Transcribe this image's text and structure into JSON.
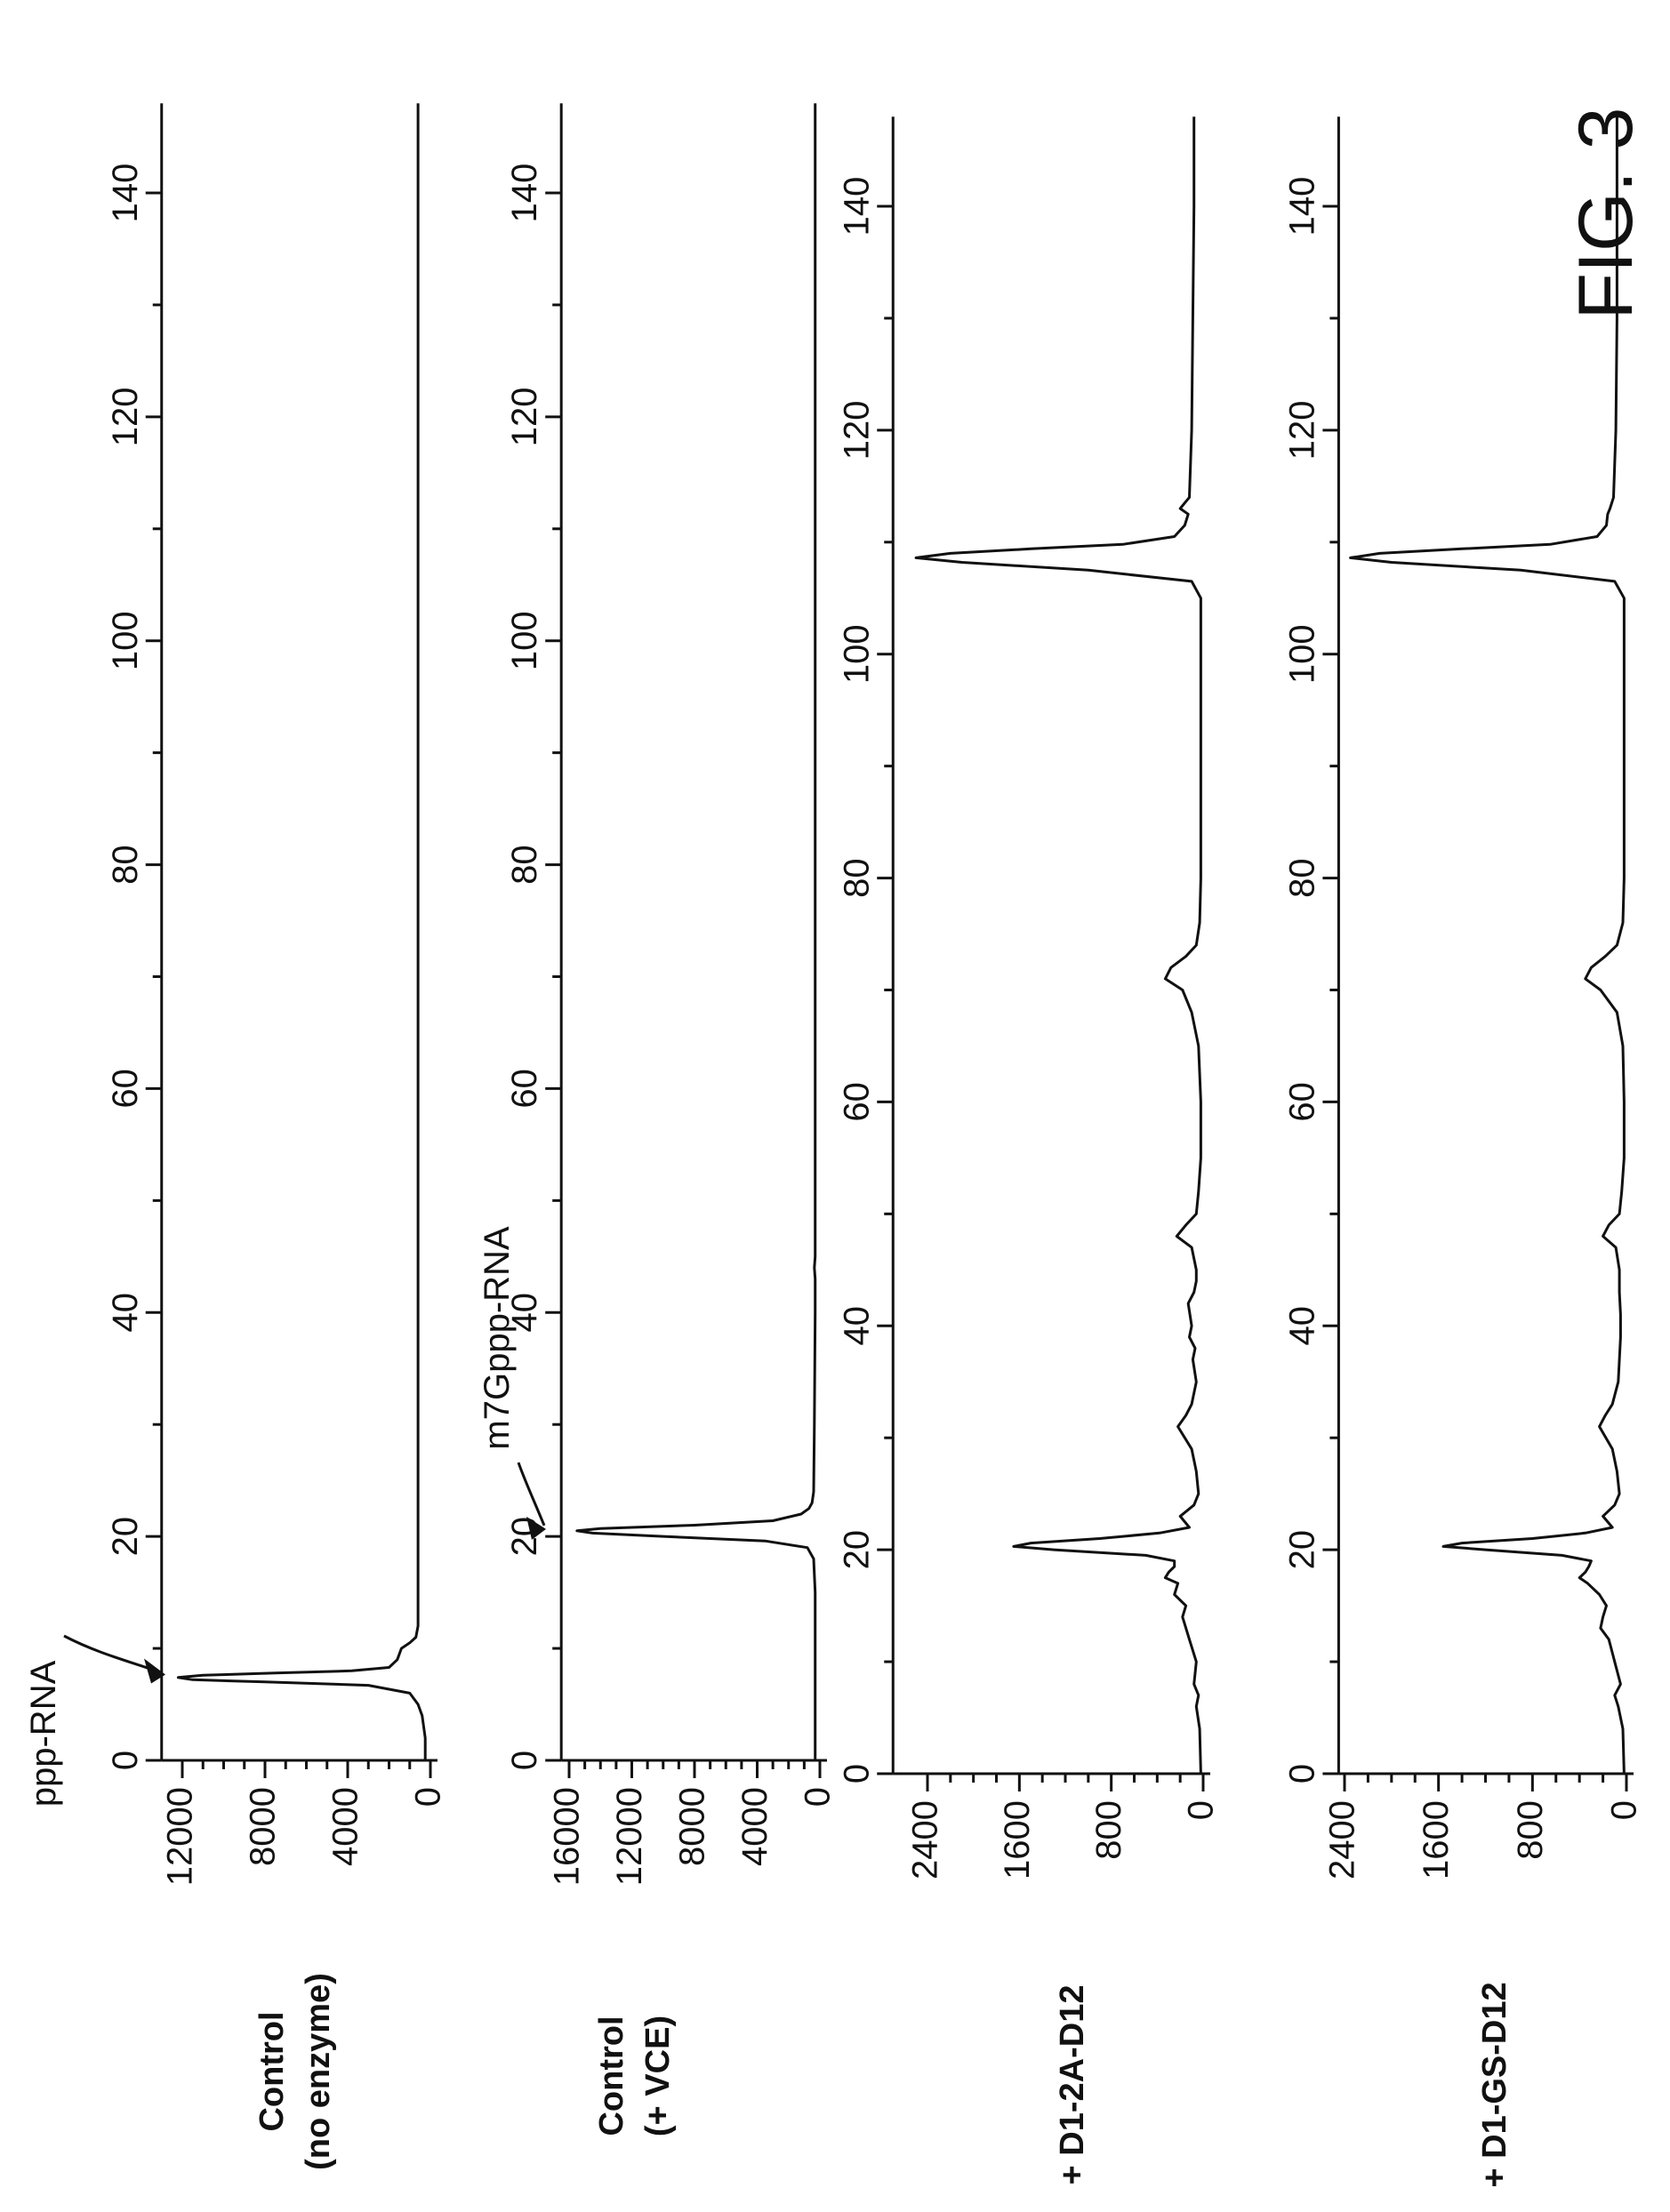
{
  "figure": {
    "label": "FIG. 3"
  },
  "chart_data": [
    {
      "type": "line",
      "panel_label": [
        "Control",
        "(no enzyme)"
      ],
      "x_ticks": [
        0,
        20,
        40,
        60,
        80,
        100,
        120,
        140
      ],
      "xlim": [
        0,
        148
      ],
      "y_ticks": [
        0,
        4000,
        8000,
        12000
      ],
      "ylim": [
        0,
        13000
      ],
      "annotations": [
        {
          "text": "ppp-RNA",
          "x": 7.5
        }
      ],
      "series": [
        {
          "x": [
            0,
            2,
            4,
            5,
            6,
            6.7,
            7.0,
            7.2,
            7.4,
            7.6,
            7.8,
            8.0,
            8.3,
            9,
            10,
            10.5,
            11,
            12,
            20,
            40,
            60,
            80,
            100,
            120,
            140,
            148
          ],
          "y": [
            250,
            250,
            400,
            600,
            1000,
            3000,
            8000,
            11500,
            12200,
            11000,
            7500,
            3800,
            2000,
            1600,
            1400,
            1000,
            700,
            600,
            600,
            600,
            600,
            600,
            600,
            600,
            600,
            600
          ]
        }
      ]
    },
    {
      "type": "line",
      "panel_label": [
        "Control",
        "(+ VCE)"
      ],
      "x_ticks": [
        0,
        20,
        40,
        60,
        80,
        100,
        120,
        140
      ],
      "xlim": [
        0,
        148
      ],
      "y_ticks": [
        0,
        4000,
        8000,
        12000,
        16000
      ],
      "ylim": [
        0,
        16500
      ],
      "annotations": [
        {
          "text": "m7Gppp-RNA",
          "x": 20.5
        }
      ],
      "series": [
        {
          "x": [
            0,
            5,
            10,
            15,
            18,
            19,
            19.6,
            20.0,
            20.3,
            20.5,
            20.7,
            21.0,
            21.4,
            22,
            22.5,
            23,
            24,
            30,
            40,
            43,
            44,
            45,
            50,
            60,
            80,
            100,
            120,
            140,
            148
          ],
          "y": [
            300,
            300,
            300,
            300,
            400,
            800,
            3500,
            10000,
            14500,
            15500,
            14000,
            8000,
            3000,
            1200,
            700,
            500,
            400,
            350,
            300,
            300,
            350,
            300,
            300,
            300,
            300,
            300,
            300,
            300,
            300
          ]
        }
      ]
    },
    {
      "type": "line",
      "panel_label": [
        "+ D1-2A-D12"
      ],
      "x_ticks": [
        0,
        20,
        40,
        60,
        80,
        100,
        120,
        140
      ],
      "xlim": [
        0,
        148
      ],
      "y_ticks": [
        0,
        800,
        1600,
        2400
      ],
      "ylim": [
        0,
        2700
      ],
      "series": [
        {
          "x": [
            0,
            4,
            6,
            7,
            8,
            10,
            12,
            14,
            15,
            16,
            17,
            17.5,
            18,
            18.5,
            19,
            19.5,
            20.0,
            20.3,
            20.6,
            21.0,
            21.5,
            22,
            23,
            24,
            25,
            27,
            29,
            31,
            32,
            33,
            35,
            37,
            38,
            39,
            40,
            42,
            43,
            44,
            45,
            47,
            48,
            49,
            50,
            52,
            55,
            60,
            65,
            68,
            70,
            71,
            72,
            73,
            74,
            76,
            80,
            90,
            100,
            105,
            106.5,
            107.5,
            108.2,
            108.6,
            109.0,
            109.4,
            109.8,
            110.5,
            111.5,
            112.5,
            113,
            113.5,
            114,
            120,
            130,
            140,
            148
          ],
          "y": [
            20,
            30,
            60,
            40,
            80,
            60,
            120,
            180,
            150,
            250,
            220,
            330,
            300,
            250,
            250,
            500,
            1300,
            1650,
            1500,
            900,
            380,
            120,
            200,
            80,
            40,
            60,
            100,
            220,
            150,
            100,
            60,
            90,
            70,
            120,
            100,
            130,
            80,
            60,
            60,
            100,
            230,
            150,
            60,
            40,
            20,
            20,
            40,
            100,
            180,
            330,
            280,
            150,
            60,
            30,
            20,
            20,
            20,
            20,
            100,
            1000,
            2100,
            2500,
            2200,
            1500,
            700,
            250,
            160,
            130,
            200,
            160,
            120,
            100,
            90,
            80,
            80
          ]
        }
      ]
    },
    {
      "type": "line",
      "panel_label": [
        "+ D1-GS-D12"
      ],
      "x_ticks": [
        0,
        20,
        40,
        60,
        80,
        100,
        120,
        140
      ],
      "xlim": [
        0,
        148
      ],
      "y_ticks": [
        0,
        800,
        1600,
        2400
      ],
      "ylim": [
        0,
        2450
      ],
      "series": [
        {
          "x": [
            0,
            4,
            6,
            7,
            8,
            10,
            12,
            13,
            14,
            15,
            16,
            17,
            17.5,
            18,
            18.5,
            19,
            19.5,
            20.0,
            20.3,
            20.6,
            21.0,
            21.5,
            22,
            23,
            24,
            25,
            27,
            29,
            31,
            32,
            33,
            35,
            37,
            39,
            41,
            43,
            45,
            47,
            48,
            49,
            50,
            52,
            55,
            60,
            65,
            68,
            70,
            71,
            72,
            73,
            74,
            76,
            80,
            90,
            100,
            105,
            106.5,
            107.5,
            108.2,
            108.6,
            109.0,
            109.4,
            109.8,
            110.5,
            111.5,
            112.5,
            113,
            114,
            120,
            130,
            140,
            148
          ],
          "y": [
            20,
            30,
            70,
            100,
            50,
            100,
            150,
            220,
            200,
            170,
            230,
            330,
            400,
            350,
            320,
            300,
            550,
            1200,
            1560,
            1400,
            800,
            350,
            120,
            200,
            100,
            60,
            80,
            120,
            230,
            180,
            120,
            70,
            60,
            50,
            50,
            60,
            60,
            90,
            200,
            150,
            60,
            40,
            20,
            20,
            30,
            80,
            220,
            350,
            300,
            180,
            80,
            30,
            20,
            20,
            20,
            20,
            100,
            900,
            2000,
            2350,
            2100,
            1400,
            650,
            250,
            170,
            160,
            140,
            110,
            90,
            80,
            80,
            80
          ]
        }
      ]
    }
  ]
}
